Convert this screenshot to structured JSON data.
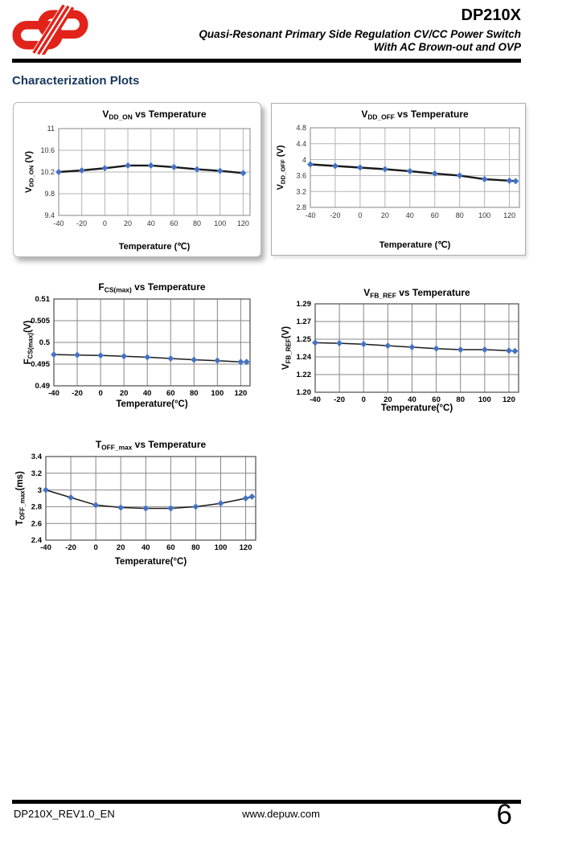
{
  "header": {
    "product": "DP210X",
    "subtitle_line1": "Quasi-Resonant Primary Side Regulation CV/CC Power Switch",
    "subtitle_line2": "With AC Brown-out and OVP",
    "logo_color": "#E2231A"
  },
  "section_title": "Characterization Plots",
  "footer": {
    "doc_ref": "DP210X_REV1.0_EN",
    "website": "www.depuw.com",
    "page_number": "6"
  },
  "colors": {
    "heading_navy": "#17375E",
    "marker_blue": "#4472C4",
    "logo_red": "#E2231A"
  },
  "chart_data": [
    {
      "id": "vdd_on",
      "type": "line",
      "title": {
        "base": "V",
        "sub": "DD_ON",
        "rest": " vs Temperature"
      },
      "ylabel": {
        "base": "V",
        "sub": "DD_ON",
        "rest": " (V)"
      },
      "xlabel": "Temperature (℃)",
      "x_ticks": [
        -40,
        -20,
        0,
        20,
        40,
        60,
        80,
        100,
        120
      ],
      "x_range": [
        -40,
        126
      ],
      "y_ticks": [
        9.4,
        9.8,
        10.2,
        10.6,
        11
      ],
      "y_tick_labels": [
        "9.4",
        "9.8",
        "10.2",
        "10.6",
        "11"
      ],
      "x": [
        -40,
        -20,
        0,
        20,
        40,
        60,
        80,
        100,
        120
      ],
      "values": [
        10.2,
        10.23,
        10.27,
        10.32,
        10.32,
        10.29,
        10.25,
        10.22,
        10.18
      ],
      "grid": true,
      "legend": "none",
      "marker_color": "#4472C4",
      "line_color": "#1a1a1a",
      "line_width": 2.4,
      "grid_color": "#b3b3b3",
      "axis_color": "#999999",
      "text_color": "#333333",
      "bold_axis_text": false
    },
    {
      "id": "vdd_off",
      "type": "line",
      "title": {
        "base": "V",
        "sub": "DD_OFF",
        "rest": " vs Temperature"
      },
      "ylabel": {
        "base": "V",
        "sub": "DD_OFF",
        "rest": " (V)"
      },
      "xlabel": "Temperature (℃)",
      "x_ticks": [
        -40,
        -20,
        0,
        20,
        40,
        60,
        80,
        100,
        120
      ],
      "x_range": [
        -40,
        128
      ],
      "y_ticks": [
        2.8,
        3.2,
        3.6,
        4,
        4.4,
        4.8
      ],
      "y_tick_labels": [
        "2.8",
        "3.2",
        "3.6",
        "4",
        "4.4",
        "4.8"
      ],
      "x": [
        -40,
        -20,
        0,
        20,
        40,
        60,
        80,
        100,
        120,
        125
      ],
      "values": [
        3.88,
        3.84,
        3.8,
        3.76,
        3.71,
        3.65,
        3.6,
        3.51,
        3.47,
        3.46
      ],
      "grid": true,
      "legend": "none",
      "marker_color": "#4472C4",
      "line_color": "#1a1a1a",
      "line_width": 2.4,
      "grid_color": "#b3b3b3",
      "axis_color": "#999999",
      "text_color": "#333333",
      "bold_axis_text": false
    },
    {
      "id": "fcs_max",
      "type": "line",
      "title": {
        "base": "F",
        "sub": "CS(max)",
        "rest": " vs Temperature"
      },
      "ylabel": {
        "base": "F",
        "sub": "CS(max)",
        "rest": "(V)"
      },
      "xlabel": "Temperature(°C)",
      "x_ticks": [
        -40,
        -20,
        0,
        20,
        40,
        60,
        80,
        100,
        120
      ],
      "x_range": [
        -40,
        128
      ],
      "y_ticks": [
        0.49,
        0.495,
        0.5,
        0.505,
        0.51
      ],
      "y_tick_labels": [
        "0.49",
        "0.495",
        "0.5",
        "0.505",
        "0.51"
      ],
      "x": [
        -40,
        -20,
        0,
        20,
        40,
        60,
        80,
        100,
        120,
        125
      ],
      "values": [
        0.4972,
        0.4971,
        0.497,
        0.4968,
        0.4966,
        0.4963,
        0.496,
        0.4958,
        0.4955,
        0.4955
      ],
      "grid": true,
      "legend": "none",
      "marker_color": "#4472C4",
      "line_color": "#1a1a1a",
      "line_width": 1.5,
      "grid_color": "#878787",
      "axis_color": "#4d4d4d",
      "text_color": "#000000",
      "bold_axis_text": true
    },
    {
      "id": "vfb_ref",
      "type": "line",
      "title": {
        "base": "V",
        "sub": "FB_REF",
        "rest": " vs Temperature"
      },
      "ylabel": {
        "base": "V",
        "sub": "FB_REF",
        "rest": "(V)"
      },
      "xlabel": "Temperature(°C)",
      "x_ticks": [
        -40,
        -20,
        0,
        20,
        40,
        60,
        80,
        100,
        120
      ],
      "x_range": [
        -40,
        128
      ],
      "y_ticks": [
        1.2,
        1.22,
        1.24,
        1.25,
        1.27,
        1.29
      ],
      "y_tick_labels": [
        "1.20",
        "1.22",
        "1.24",
        "1.25",
        "1.27",
        "1.29"
      ],
      "x": [
        -40,
        -20,
        0,
        20,
        40,
        60,
        80,
        100,
        120,
        125
      ],
      "values": [
        1.248,
        1.2477,
        1.2472,
        1.2463,
        1.2455,
        1.2447,
        1.2441,
        1.2441,
        1.2435,
        1.2433
      ],
      "grid": true,
      "legend": "none",
      "marker_color": "#4472C4",
      "line_color": "#1a1a1a",
      "line_width": 1.5,
      "grid_color": "#878787",
      "axis_color": "#4d4d4d",
      "text_color": "#000000",
      "bold_axis_text": true
    },
    {
      "id": "toff_max",
      "type": "line",
      "title": {
        "base": "T",
        "sub": "OFF_max",
        "rest": " vs Temperature"
      },
      "ylabel": {
        "base": "T",
        "sub": "OFF_max",
        "rest": "(ms)"
      },
      "xlabel": "Temperature(°C)",
      "x_ticks": [
        -40,
        -20,
        0,
        20,
        40,
        60,
        80,
        100,
        120
      ],
      "x_range": [
        -40,
        128
      ],
      "y_ticks": [
        2.4,
        2.6,
        2.8,
        3,
        3.2,
        3.4
      ],
      "y_tick_labels": [
        "2.4",
        "2.6",
        "2.8",
        "3",
        "3.2",
        "3.4"
      ],
      "x": [
        -40,
        -20,
        0,
        20,
        40,
        60,
        80,
        100,
        120,
        125
      ],
      "values": [
        3.0,
        2.91,
        2.82,
        2.79,
        2.78,
        2.78,
        2.8,
        2.84,
        2.9,
        2.92
      ],
      "grid": true,
      "legend": "none",
      "marker_color": "#4472C4",
      "line_color": "#1a1a1a",
      "line_width": 1.5,
      "grid_color": "#878787",
      "axis_color": "#4d4d4d",
      "text_color": "#000000",
      "bold_axis_text": true
    }
  ]
}
